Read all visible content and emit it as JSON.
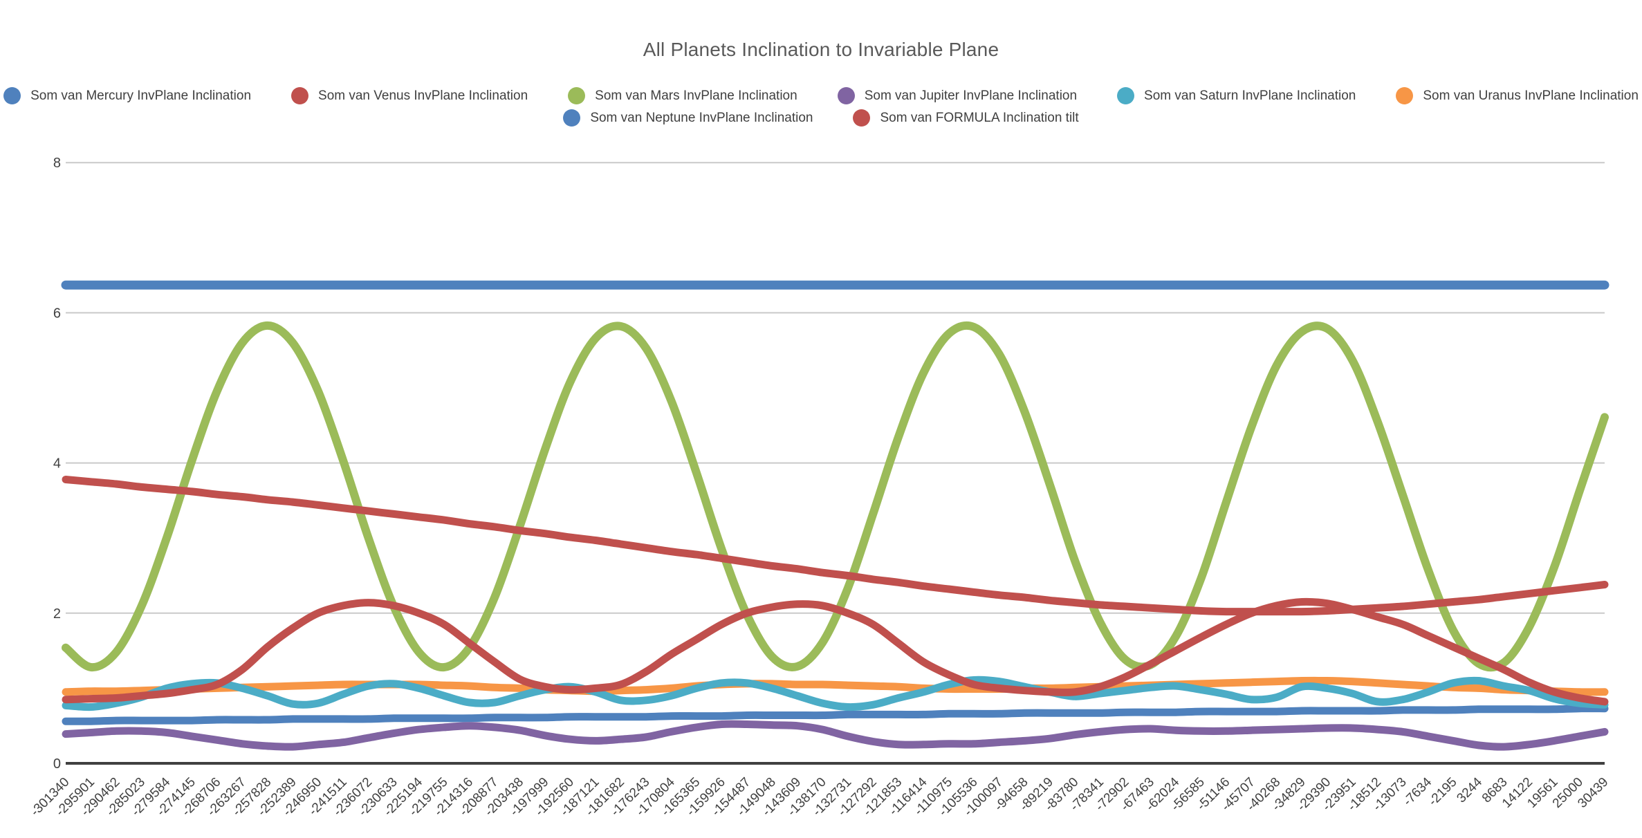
{
  "title": "All Planets Inclination to Invariable Plane",
  "colors": {
    "grid": "#c9c9c9",
    "axis_line": "#404040",
    "axis_label": "#404040",
    "title_text": "#595959"
  },
  "legend": {
    "rows": [
      [
        0,
        1,
        2,
        3,
        4,
        5
      ],
      [
        6,
        7
      ]
    ]
  },
  "chart_data": {
    "type": "line",
    "title": "All Planets Inclination to Invariable Plane",
    "xlabel": "",
    "ylabel": "",
    "ylim": [
      0,
      8
    ],
    "yticks": [
      0,
      2,
      4,
      6,
      8
    ],
    "grid": "horizontal",
    "legend_position": "top-center",
    "x_labels": [
      "-301340",
      "-295901",
      "-290462",
      "-285023",
      "-279584",
      "-274145",
      "-268706",
      "-263267",
      "-257828",
      "-252389",
      "-246950",
      "-241511",
      "-236072",
      "-230633",
      "-225194",
      "-219755",
      "-214316",
      "-208877",
      "-203438",
      "-197999",
      "-192560",
      "-187121",
      "-181682",
      "-176243",
      "-170804",
      "-165365",
      "-159926",
      "-154487",
      "-149048",
      "-143609",
      "-138170",
      "-132731",
      "-127292",
      "-121853",
      "-116414",
      "-110975",
      "-105536",
      "-100097",
      "-94658",
      "-89219",
      "-83780",
      "-78341",
      "-72902",
      "-67463",
      "-62024",
      "-56585",
      "-51146",
      "-45707",
      "-40268",
      "-34829",
      "-29390",
      "-23951",
      "-18512",
      "-13073",
      "-7634",
      "-2195",
      "3244",
      "8683",
      "14122",
      "19561",
      "25000",
      "30439"
    ],
    "draw_order": [
      0,
      6,
      3,
      5,
      4,
      2,
      1,
      7
    ],
    "series": [
      {
        "key": "mercury",
        "name": "Som van Mercury InvPlane Inclination",
        "color": "#4F81BD",
        "stroke_width": 13,
        "values": [
          6.37,
          6.37,
          6.37,
          6.37,
          6.37,
          6.37,
          6.37,
          6.37,
          6.37,
          6.37,
          6.37,
          6.37,
          6.37,
          6.37,
          6.37,
          6.37,
          6.37,
          6.37,
          6.37,
          6.37,
          6.37,
          6.37,
          6.37,
          6.37,
          6.37,
          6.37,
          6.37,
          6.37,
          6.37,
          6.37,
          6.37,
          6.37,
          6.37,
          6.37,
          6.37,
          6.37,
          6.37,
          6.37,
          6.37,
          6.37,
          6.37,
          6.37,
          6.37,
          6.37,
          6.37,
          6.37,
          6.37,
          6.37,
          6.37,
          6.37,
          6.37,
          6.37,
          6.37,
          6.37,
          6.37,
          6.37,
          6.37,
          6.37,
          6.37,
          6.37,
          6.37,
          6.37
        ]
      },
      {
        "key": "venus",
        "name": "Som van Venus InvPlane Inclination",
        "color": "#C0504D",
        "stroke_width": 11,
        "values": [
          0.85,
          0.86,
          0.87,
          0.9,
          0.93,
          0.98,
          1.05,
          1.25,
          1.55,
          1.8,
          2.0,
          2.1,
          2.14,
          2.1,
          2.0,
          1.85,
          1.6,
          1.35,
          1.12,
          1.02,
          0.98,
          1.0,
          1.05,
          1.22,
          1.45,
          1.65,
          1.85,
          2.0,
          2.08,
          2.12,
          2.1,
          2.0,
          1.85,
          1.6,
          1.35,
          1.18,
          1.05,
          1.0,
          0.97,
          0.95,
          0.95,
          1.02,
          1.15,
          1.32,
          1.5,
          1.68,
          1.85,
          2.0,
          2.1,
          2.15,
          2.13,
          2.05,
          1.95,
          1.85,
          1.7,
          1.55,
          1.4,
          1.25,
          1.08,
          0.95,
          0.87,
          0.82
        ]
      },
      {
        "key": "mars",
        "name": "Som van Mars InvPlane Inclination",
        "color": "#9BBB59",
        "stroke_width": 12,
        "values": [
          1.54,
          1.28,
          1.48,
          2.09,
          3.0,
          4.03,
          4.96,
          5.6,
          5.83,
          5.6,
          4.96,
          4.03,
          3.0,
          2.09,
          1.48,
          1.28,
          1.54,
          2.21,
          3.16,
          4.18,
          5.08,
          5.66,
          5.82,
          5.53,
          4.83,
          3.87,
          2.85,
          1.98,
          1.42,
          1.29,
          1.61,
          2.33,
          3.32,
          4.34,
          5.2,
          5.72,
          5.81,
          5.45,
          4.69,
          3.72,
          2.7,
          1.88,
          1.38,
          1.31,
          1.69,
          2.46,
          3.48,
          4.48,
          5.3,
          5.75,
          5.79,
          5.37,
          4.55,
          3.57,
          2.58,
          1.77,
          1.33,
          1.34,
          1.81,
          2.61,
          3.62,
          4.61
        ]
      },
      {
        "key": "jupiter",
        "name": "Som van Jupiter InvPlane Inclination",
        "color": "#8064A2",
        "stroke_width": 11,
        "values": [
          0.39,
          0.41,
          0.43,
          0.43,
          0.41,
          0.36,
          0.31,
          0.26,
          0.23,
          0.22,
          0.25,
          0.28,
          0.34,
          0.4,
          0.45,
          0.48,
          0.5,
          0.48,
          0.44,
          0.37,
          0.32,
          0.3,
          0.32,
          0.35,
          0.42,
          0.48,
          0.52,
          0.52,
          0.51,
          0.5,
          0.45,
          0.36,
          0.29,
          0.25,
          0.25,
          0.26,
          0.26,
          0.28,
          0.3,
          0.33,
          0.38,
          0.42,
          0.45,
          0.46,
          0.44,
          0.43,
          0.43,
          0.44,
          0.45,
          0.46,
          0.47,
          0.47,
          0.45,
          0.42,
          0.36,
          0.3,
          0.24,
          0.22,
          0.25,
          0.3,
          0.36,
          0.42
        ]
      },
      {
        "key": "saturn",
        "name": "Som van Saturn InvPlane Inclination",
        "color": "#4BACC6",
        "stroke_width": 11,
        "values": [
          0.77,
          0.75,
          0.8,
          0.88,
          1.0,
          1.06,
          1.07,
          1.0,
          0.9,
          0.79,
          0.8,
          0.92,
          1.03,
          1.06,
          1.0,
          0.9,
          0.81,
          0.81,
          0.9,
          0.98,
          1.02,
          0.95,
          0.84,
          0.84,
          0.9,
          1.0,
          1.07,
          1.07,
          1.0,
          0.9,
          0.8,
          0.75,
          0.78,
          0.87,
          0.95,
          1.05,
          1.11,
          1.09,
          1.02,
          0.95,
          0.89,
          0.93,
          0.97,
          1.01,
          1.03,
          0.98,
          0.92,
          0.85,
          0.88,
          1.02,
          1.0,
          0.93,
          0.82,
          0.85,
          0.95,
          1.07,
          1.1,
          1.03,
          0.97,
          0.86,
          0.8,
          0.78
        ]
      },
      {
        "key": "uranus",
        "name": "Som van Uranus InvPlane Inclination",
        "color": "#F79646",
        "stroke_width": 11,
        "values": [
          0.95,
          0.96,
          0.96,
          0.97,
          0.98,
          0.99,
          1.0,
          1.01,
          1.02,
          1.03,
          1.04,
          1.05,
          1.05,
          1.05,
          1.05,
          1.04,
          1.03,
          1.01,
          1.0,
          0.98,
          0.97,
          0.96,
          0.97,
          0.98,
          1.0,
          1.03,
          1.05,
          1.06,
          1.06,
          1.05,
          1.05,
          1.04,
          1.03,
          1.02,
          1.0,
          0.99,
          0.99,
          0.99,
          1.0,
          1.0,
          1.01,
          1.02,
          1.03,
          1.04,
          1.05,
          1.06,
          1.07,
          1.08,
          1.09,
          1.1,
          1.1,
          1.09,
          1.07,
          1.05,
          1.03,
          1.01,
          1.0,
          0.98,
          0.97,
          0.96,
          0.95,
          0.95
        ]
      },
      {
        "key": "neptune",
        "name": "Som van Neptune InvPlane Inclination",
        "color": "#4F81BD",
        "stroke_width": 11,
        "values": [
          0.56,
          0.56,
          0.57,
          0.57,
          0.57,
          0.57,
          0.58,
          0.58,
          0.58,
          0.59,
          0.59,
          0.59,
          0.59,
          0.6,
          0.6,
          0.6,
          0.6,
          0.61,
          0.61,
          0.61,
          0.62,
          0.62,
          0.62,
          0.62,
          0.63,
          0.63,
          0.63,
          0.64,
          0.64,
          0.64,
          0.64,
          0.65,
          0.65,
          0.65,
          0.65,
          0.66,
          0.66,
          0.66,
          0.67,
          0.67,
          0.67,
          0.67,
          0.68,
          0.68,
          0.68,
          0.69,
          0.69,
          0.69,
          0.69,
          0.7,
          0.7,
          0.7,
          0.7,
          0.71,
          0.71,
          0.71,
          0.72,
          0.72,
          0.72,
          0.72,
          0.73,
          0.73
        ]
      },
      {
        "key": "formula",
        "name": "Som van FORMULA Inclination tilt",
        "color": "#C0504D",
        "stroke_width": 11,
        "values": [
          3.78,
          3.75,
          3.72,
          3.68,
          3.65,
          3.62,
          3.58,
          3.55,
          3.51,
          3.48,
          3.44,
          3.4,
          3.36,
          3.32,
          3.28,
          3.24,
          3.19,
          3.15,
          3.1,
          3.06,
          3.01,
          2.97,
          2.92,
          2.87,
          2.82,
          2.78,
          2.73,
          2.68,
          2.63,
          2.59,
          2.54,
          2.5,
          2.45,
          2.41,
          2.36,
          2.32,
          2.28,
          2.24,
          2.21,
          2.17,
          2.14,
          2.11,
          2.09,
          2.07,
          2.05,
          2.03,
          2.02,
          2.02,
          2.02,
          2.02,
          2.03,
          2.05,
          2.07,
          2.09,
          2.12,
          2.15,
          2.18,
          2.22,
          2.26,
          2.3,
          2.34,
          2.38
        ]
      }
    ]
  }
}
